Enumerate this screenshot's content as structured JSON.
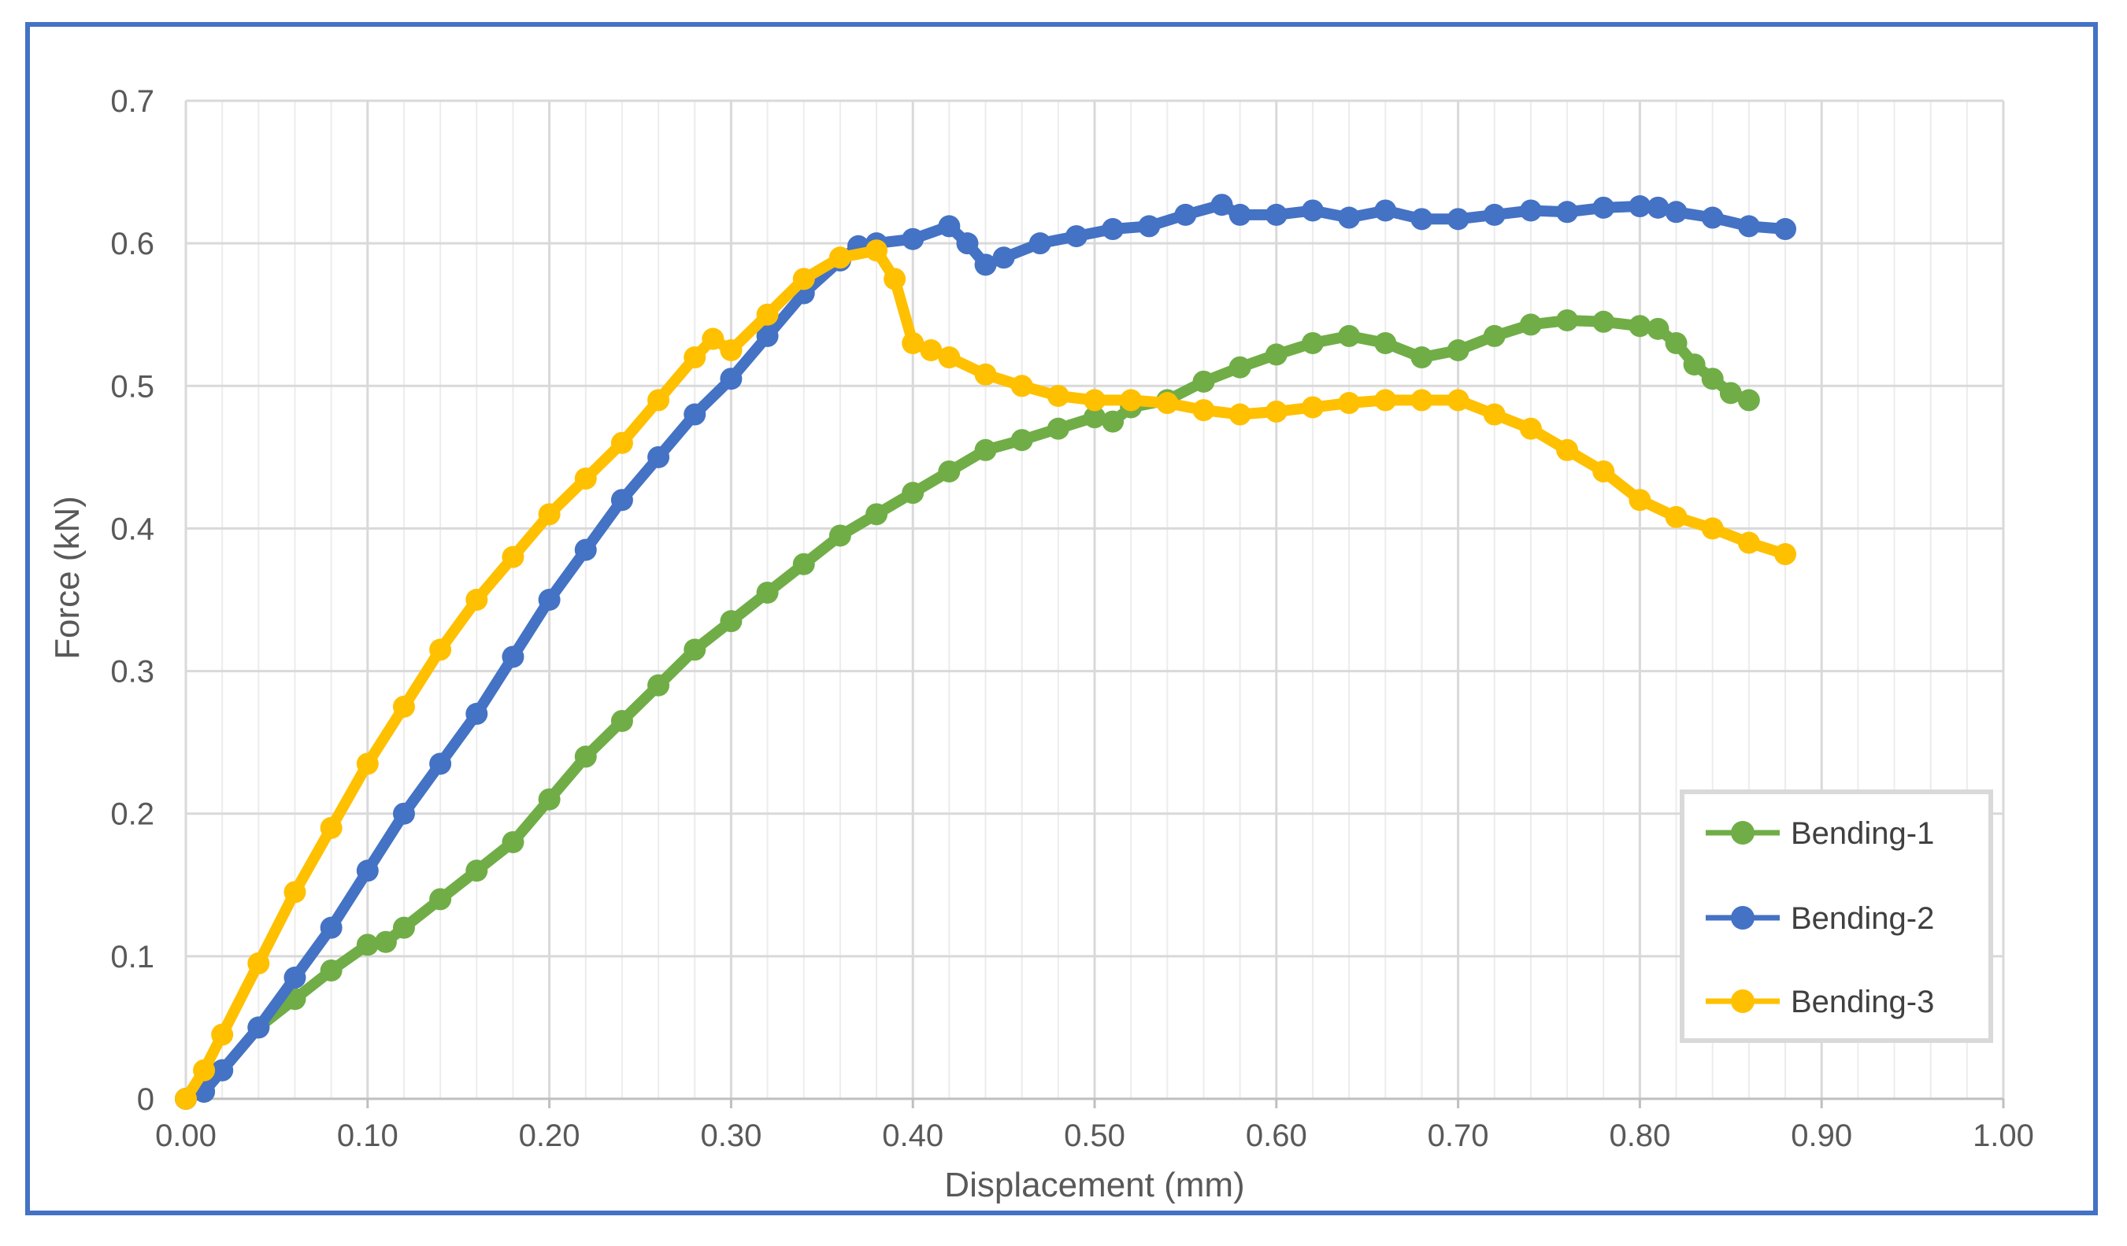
{
  "chart_data": {
    "type": "scatter",
    "title": "",
    "xlabel": "Displacement (mm)",
    "ylabel": "Force (kN)",
    "xlim": [
      0,
      1.0
    ],
    "ylim": [
      0,
      0.7
    ],
    "x_ticks": [
      0.0,
      0.1,
      0.2,
      0.3,
      0.4,
      0.5,
      0.6,
      0.7,
      0.8,
      0.9,
      1.0
    ],
    "x_tick_labels": [
      "0.00",
      "0.10",
      "0.20",
      "0.30",
      "0.40",
      "0.50",
      "0.60",
      "0.70",
      "0.80",
      "0.90",
      "1.00"
    ],
    "y_ticks": [
      0,
      0.1,
      0.2,
      0.3,
      0.4,
      0.5,
      0.6,
      0.7
    ],
    "y_tick_labels": [
      "0",
      "0.1",
      "0.2",
      "0.3",
      "0.4",
      "0.5",
      "0.6",
      "0.7"
    ],
    "grid": true,
    "minor_grid_x": true,
    "legend_position": "bottom-right",
    "series": [
      {
        "name": "Bending-1",
        "color": "#70ad47",
        "x": [
          0.0,
          0.01,
          0.02,
          0.04,
          0.06,
          0.08,
          0.1,
          0.11,
          0.12,
          0.14,
          0.16,
          0.18,
          0.2,
          0.22,
          0.24,
          0.26,
          0.28,
          0.3,
          0.32,
          0.34,
          0.36,
          0.38,
          0.4,
          0.42,
          0.44,
          0.46,
          0.48,
          0.5,
          0.51,
          0.52,
          0.54,
          0.56,
          0.58,
          0.6,
          0.62,
          0.64,
          0.66,
          0.68,
          0.7,
          0.72,
          0.74,
          0.76,
          0.78,
          0.8,
          0.81,
          0.82,
          0.83,
          0.84,
          0.85,
          0.86
        ],
        "y": [
          0.0,
          0.005,
          0.02,
          0.05,
          0.07,
          0.09,
          0.108,
          0.11,
          0.12,
          0.14,
          0.16,
          0.18,
          0.21,
          0.24,
          0.265,
          0.29,
          0.315,
          0.335,
          0.355,
          0.375,
          0.395,
          0.41,
          0.425,
          0.44,
          0.455,
          0.462,
          0.47,
          0.478,
          0.475,
          0.485,
          0.49,
          0.503,
          0.513,
          0.522,
          0.53,
          0.535,
          0.53,
          0.52,
          0.525,
          0.535,
          0.543,
          0.546,
          0.545,
          0.542,
          0.54,
          0.53,
          0.515,
          0.505,
          0.495,
          0.49
        ]
      },
      {
        "name": "Bending-2",
        "color": "#4472c4",
        "x": [
          0.0,
          0.01,
          0.02,
          0.04,
          0.06,
          0.08,
          0.1,
          0.12,
          0.14,
          0.16,
          0.18,
          0.2,
          0.22,
          0.24,
          0.26,
          0.28,
          0.3,
          0.32,
          0.34,
          0.36,
          0.37,
          0.38,
          0.4,
          0.42,
          0.43,
          0.44,
          0.45,
          0.47,
          0.49,
          0.51,
          0.53,
          0.55,
          0.57,
          0.58,
          0.6,
          0.62,
          0.64,
          0.66,
          0.68,
          0.7,
          0.72,
          0.74,
          0.76,
          0.78,
          0.8,
          0.81,
          0.82,
          0.84,
          0.86,
          0.88
        ],
        "y": [
          0.0,
          0.005,
          0.02,
          0.05,
          0.085,
          0.12,
          0.16,
          0.2,
          0.235,
          0.27,
          0.31,
          0.35,
          0.385,
          0.42,
          0.45,
          0.48,
          0.505,
          0.535,
          0.565,
          0.588,
          0.598,
          0.6,
          0.603,
          0.612,
          0.6,
          0.585,
          0.59,
          0.6,
          0.605,
          0.61,
          0.612,
          0.62,
          0.627,
          0.62,
          0.62,
          0.623,
          0.618,
          0.623,
          0.617,
          0.617,
          0.62,
          0.623,
          0.622,
          0.625,
          0.626,
          0.625,
          0.622,
          0.618,
          0.612,
          0.61
        ]
      },
      {
        "name": "Bending-3",
        "color": "#ffc000",
        "x": [
          0.0,
          0.01,
          0.02,
          0.04,
          0.06,
          0.08,
          0.1,
          0.12,
          0.14,
          0.16,
          0.18,
          0.2,
          0.22,
          0.24,
          0.26,
          0.28,
          0.29,
          0.3,
          0.32,
          0.34,
          0.36,
          0.38,
          0.39,
          0.4,
          0.41,
          0.42,
          0.44,
          0.46,
          0.48,
          0.5,
          0.52,
          0.54,
          0.56,
          0.58,
          0.6,
          0.62,
          0.64,
          0.66,
          0.68,
          0.7,
          0.72,
          0.74,
          0.76,
          0.78,
          0.8,
          0.82,
          0.84,
          0.86,
          0.88
        ],
        "y": [
          0.0,
          0.02,
          0.045,
          0.095,
          0.145,
          0.19,
          0.235,
          0.275,
          0.315,
          0.35,
          0.38,
          0.41,
          0.435,
          0.46,
          0.49,
          0.52,
          0.533,
          0.525,
          0.55,
          0.575,
          0.59,
          0.595,
          0.575,
          0.53,
          0.525,
          0.52,
          0.508,
          0.5,
          0.493,
          0.49,
          0.49,
          0.488,
          0.483,
          0.48,
          0.482,
          0.485,
          0.488,
          0.49,
          0.49,
          0.49,
          0.48,
          0.47,
          0.455,
          0.44,
          0.42,
          0.408,
          0.4,
          0.39,
          0.382
        ]
      }
    ]
  }
}
